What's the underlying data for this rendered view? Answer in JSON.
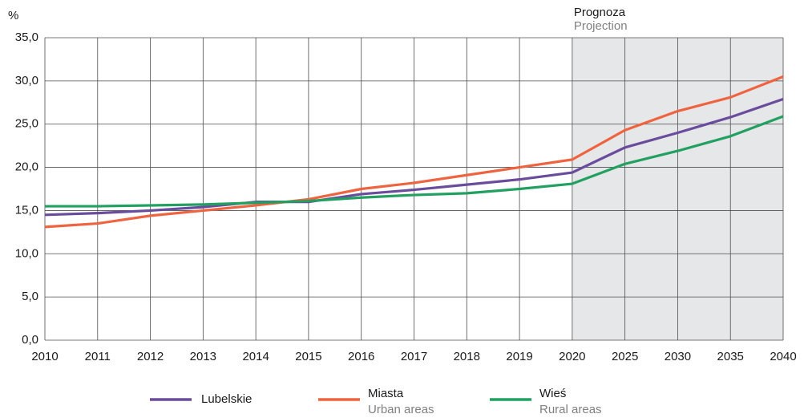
{
  "chart_data": {
    "type": "line",
    "y_label": "%",
    "projection": {
      "label": "Prognoza",
      "label_en": "Projection",
      "from": "2020",
      "color": "#e6e7e8"
    },
    "categories": [
      "2010",
      "2011",
      "2012",
      "2013",
      "2014",
      "2015",
      "2016",
      "2017",
      "2018",
      "2019",
      "2020",
      "2025",
      "2030",
      "2035",
      "2040"
    ],
    "series": [
      {
        "name": "Lubelskie",
        "color": "#6a4c9c",
        "values": [
          14.5,
          14.7,
          15.0,
          15.4,
          16.0,
          16.0,
          16.9,
          17.4,
          18.0,
          18.6,
          19.4,
          22.3,
          24.0,
          25.8,
          27.9
        ]
      },
      {
        "name": "Miasta",
        "name_en": "Urban areas",
        "color": "#ef6440",
        "values": [
          13.1,
          13.5,
          14.4,
          15.0,
          15.6,
          16.3,
          17.5,
          18.2,
          19.1,
          20.0,
          20.9,
          24.3,
          26.5,
          28.1,
          30.5
        ]
      },
      {
        "name": "Wieś",
        "name_en": "Rural areas",
        "color": "#22a061",
        "values": [
          15.5,
          15.5,
          15.6,
          15.7,
          15.9,
          16.1,
          16.5,
          16.8,
          17.0,
          17.5,
          18.1,
          20.4,
          21.9,
          23.6,
          25.9
        ]
      }
    ],
    "ylim": [
      0,
      35
    ],
    "yticks": [
      {
        "value": 0,
        "label": "0,0"
      },
      {
        "value": 5,
        "label": "5,0"
      },
      {
        "value": 10,
        "label": "10,0"
      },
      {
        "value": 15,
        "label": "15,0"
      },
      {
        "value": 20,
        "label": "20,0"
      },
      {
        "value": 25,
        "label": "25,0"
      },
      {
        "value": 30,
        "label": "30,0"
      },
      {
        "value": 35,
        "label": "35,0"
      }
    ],
    "grid": true
  }
}
